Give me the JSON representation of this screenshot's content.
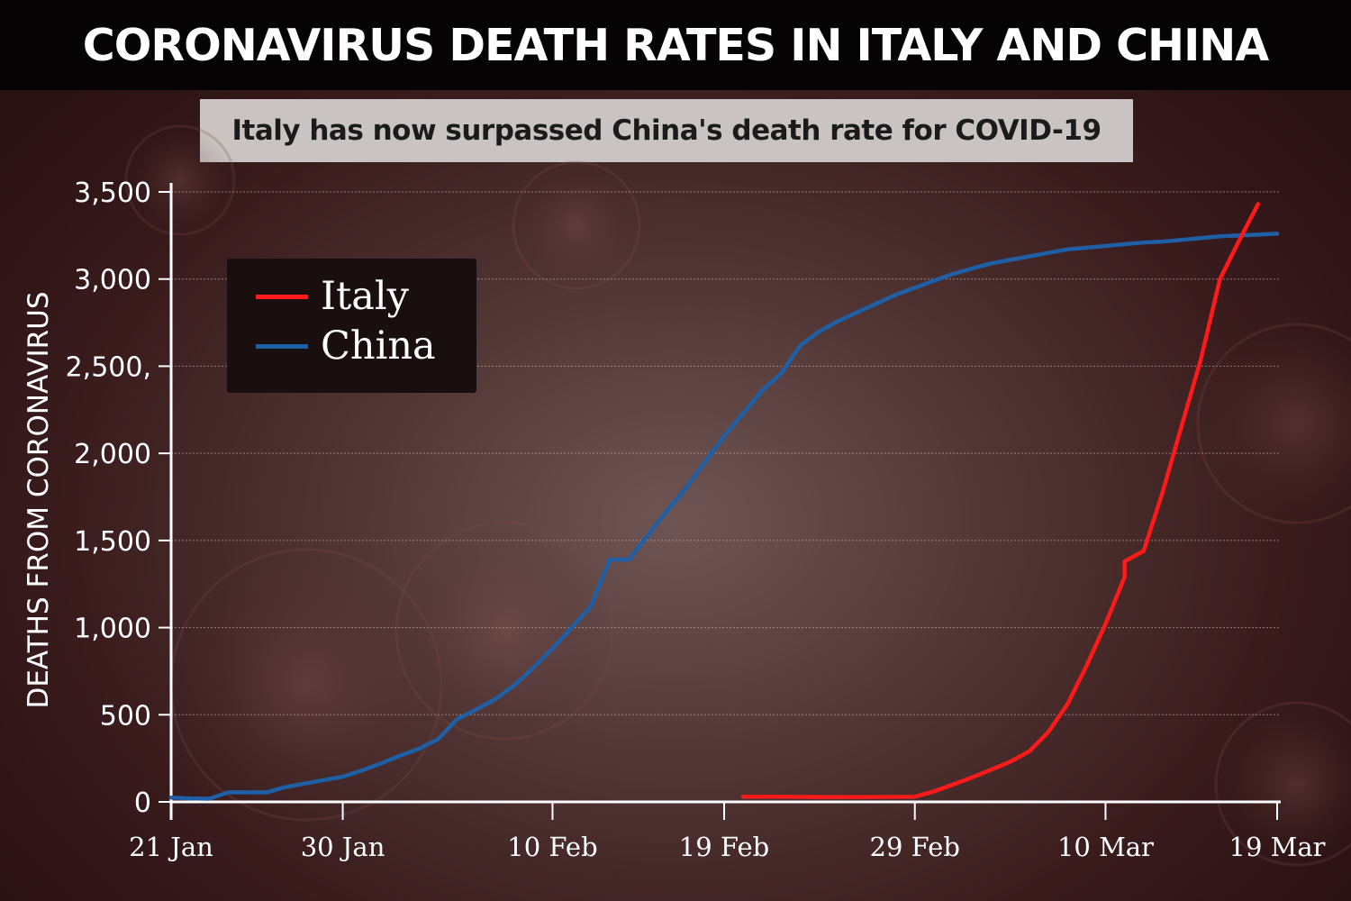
{
  "headline": "CORONAVIRUS DEATH RATES IN ITALY AND CHINA",
  "subtitle": "Italy has now surpassed China's death rate for COVID-19",
  "colors": {
    "italy": "#ff1a1a",
    "china": "#1f5fa6",
    "axis": "#ffffff",
    "grid": "#b9a8a7"
  },
  "chart_data": {
    "type": "line",
    "title": "CORONAVIRUS DEATH RATES IN ITALY AND CHINA",
    "subtitle": "Italy has now surpassed China's death rate for COVID-19",
    "ylabel": "DEATHS FROM CORONAVIRUS",
    "xlabel": "",
    "x_tick_labels": [
      "21 Jan",
      "30 Jan",
      "10 Feb",
      "19 Feb",
      "29 Feb",
      "10 Mar",
      "19 Mar"
    ],
    "x_tick_dates": [
      "2020-01-21",
      "2020-01-30",
      "2020-02-10",
      "2020-02-19",
      "2020-02-29",
      "2020-03-10",
      "2020-03-19"
    ],
    "y_tick_labels": [
      "0",
      "500",
      "1,000",
      "1,500",
      "2,000",
      "2,500,",
      "3,000",
      "3,500"
    ],
    "y_tick_values": [
      0,
      500,
      1000,
      1500,
      2000,
      2500,
      3000,
      3500
    ],
    "xlim": [
      "2020-01-21",
      "2020-03-20"
    ],
    "ylim": [
      0,
      3500
    ],
    "grid": "horizontal",
    "legend_position": "top-left",
    "series": [
      {
        "name": "China",
        "color": "#1f5fa6",
        "points": [
          [
            "2020-01-21",
            25
          ],
          [
            "2020-01-22",
            20
          ],
          [
            "2020-01-23",
            18
          ],
          [
            "2020-01-24",
            55
          ],
          [
            "2020-01-25",
            55
          ],
          [
            "2020-01-26",
            55
          ],
          [
            "2020-01-27",
            85
          ],
          [
            "2020-01-28",
            105
          ],
          [
            "2020-01-29",
            125
          ],
          [
            "2020-01-30",
            145
          ],
          [
            "2020-01-31",
            180
          ],
          [
            "2020-02-01",
            220
          ],
          [
            "2020-02-02",
            265
          ],
          [
            "2020-02-03",
            305
          ],
          [
            "2020-02-04",
            360
          ],
          [
            "2020-02-05",
            475
          ],
          [
            "2020-02-06",
            530
          ],
          [
            "2020-02-07",
            590
          ],
          [
            "2020-02-08",
            670
          ],
          [
            "2020-02-09",
            770
          ],
          [
            "2020-02-10",
            880
          ],
          [
            "2020-02-11",
            1000
          ],
          [
            "2020-02-12",
            1120
          ],
          [
            "2020-02-13",
            1390
          ],
          [
            "2020-02-14",
            1390
          ],
          [
            "2020-02-15",
            1530
          ],
          [
            "2020-02-16",
            1670
          ],
          [
            "2020-02-17",
            1800
          ],
          [
            "2020-02-18",
            1950
          ],
          [
            "2020-02-19",
            2100
          ],
          [
            "2020-02-20",
            2230
          ],
          [
            "2020-02-21",
            2360
          ],
          [
            "2020-02-22",
            2460
          ],
          [
            "2020-02-23",
            2620
          ],
          [
            "2020-02-24",
            2700
          ],
          [
            "2020-02-25",
            2760
          ],
          [
            "2020-02-26",
            2810
          ],
          [
            "2020-02-27",
            2860
          ],
          [
            "2020-02-28",
            2910
          ],
          [
            "2020-02-29",
            2950
          ],
          [
            "2020-03-01",
            2990
          ],
          [
            "2020-03-02",
            3030
          ],
          [
            "2020-03-03",
            3060
          ],
          [
            "2020-03-04",
            3090
          ],
          [
            "2020-03-05",
            3110
          ],
          [
            "2020-03-06",
            3130
          ],
          [
            "2020-03-07",
            3150
          ],
          [
            "2020-03-08",
            3170
          ],
          [
            "2020-03-09",
            3180
          ],
          [
            "2020-03-10",
            3190
          ],
          [
            "2020-03-11",
            3200
          ],
          [
            "2020-03-12",
            3210
          ],
          [
            "2020-03-13",
            3215
          ],
          [
            "2020-03-14",
            3225
          ],
          [
            "2020-03-15",
            3235
          ],
          [
            "2020-03-16",
            3245
          ],
          [
            "2020-03-17",
            3250
          ],
          [
            "2020-03-18",
            3255
          ],
          [
            "2020-03-19",
            3260
          ]
        ]
      },
      {
        "name": "Italy",
        "color": "#ff1a1a",
        "points": [
          [
            "2020-02-20",
            30
          ],
          [
            "2020-02-22",
            30
          ],
          [
            "2020-02-24",
            28
          ],
          [
            "2020-02-26",
            28
          ],
          [
            "2020-02-29",
            30
          ],
          [
            "2020-03-01",
            60
          ],
          [
            "2020-03-02",
            100
          ],
          [
            "2020-03-03",
            140
          ],
          [
            "2020-03-04",
            185
          ],
          [
            "2020-03-05",
            230
          ],
          [
            "2020-03-06",
            290
          ],
          [
            "2020-03-07",
            400
          ],
          [
            "2020-03-08",
            560
          ],
          [
            "2020-03-09",
            780
          ],
          [
            "2020-03-10",
            1020
          ],
          [
            "2020-03-11",
            1290
          ],
          [
            "2020-03-11",
            1380
          ],
          [
            "2020-03-12",
            1440
          ],
          [
            "2020-03-13",
            1780
          ],
          [
            "2020-03-14",
            2160
          ],
          [
            "2020-03-15",
            2540
          ],
          [
            "2020-03-16",
            3000
          ],
          [
            "2020-03-17",
            3220
          ],
          [
            "2020-03-18",
            3430
          ]
        ]
      }
    ]
  }
}
